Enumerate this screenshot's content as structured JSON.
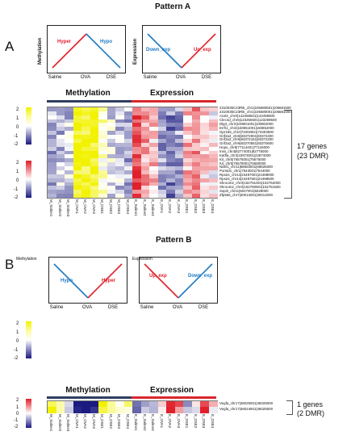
{
  "patternA": {
    "title": "Pattern A",
    "panel_label": "A",
    "meth_chart": {
      "ylabel": "Methylation",
      "left_label": "Hyper",
      "right_label": "Hypo"
    },
    "exp_chart": {
      "ylabel": "Expression",
      "left_label": "Down_exp",
      "right_label": "Up_exp"
    },
    "x_ticks": [
      "Saline",
      "OVA",
      "DSE"
    ],
    "colorbar_top": [
      "2",
      "1",
      "0",
      "-1",
      "-2"
    ],
    "colorbar_bottom": [
      "2",
      "1",
      "0",
      "-1",
      "-2"
    ],
    "methylation_header": "Methylation",
    "expression_header": "Expression",
    "gene_labels": [
      "2310035C23Rik_chr1|105680501|105681500",
      "2310035C23Rik_chr1|105680001|105681000",
      "Acsl4_chrX|142458501|142459500",
      "Clec4d_chr6|123256501|123259500",
      "Dlg3_chrX|100801001|100802000",
      "Errfi1_chr4|150851001|150852000",
      "Gpr155_chr2|73402501|73403500",
      "Grif2a2_chr6|83372001|83372200",
      "Grif2a2_chr6|83372151|83372200",
      "Grif2a2_chr6|83370551|83370600",
      "Hopx_chr5|77114401|77115000",
      "Inss_chr4|82774001|82775000",
      "Katfla_chr2|22873001|22874000",
      "Kit_chr5|75575001|75576000",
      "Kit_chr5|75579001|75580000",
      "Ndel1_chr11|68825001|68826000",
      "Pomtd1_chr1|7543001|7544000",
      "Rps24_chr14|24497001|24498000",
      "Rps24_chr14|24497501|24498500",
      "Shroom2_chrX|152751001|152752000",
      "Shroom2_chrX|152750501|152751500",
      "Sspi3_chr11|5027001|5028000",
      "Zfp566_chr7|30013001|30014000"
    ],
    "meth_columns": [
      "M_Saline1",
      "M_Saline2",
      "M_Saline3",
      "M_OVA1",
      "M_OVA2",
      "M_OVA3",
      "M_DSE1",
      "M_DSE2",
      "M_DSE3",
      "M_DSE4"
    ],
    "exp_columns": [
      "E_Saline1",
      "E_Saline2",
      "E_Saline3",
      "E_OVA1",
      "E_OVA2",
      "E_OVA3",
      "E_DSE1",
      "E_DSE2",
      "E_DSE3",
      "E_DSE4"
    ],
    "bracket_text_1": "17 genes",
    "bracket_text_2": "(23 DMR)"
  },
  "patternB": {
    "title": "Pattern B",
    "panel_label": "B",
    "meth_chart": {
      "ylabel": "Methylation",
      "left_label": "Hypo",
      "right_label": "Hyper"
    },
    "exp_chart": {
      "ylabel": "Expression",
      "left_label": "Up_exp",
      "right_label": "Down_exp"
    },
    "x_ticks": [
      "Saline",
      "OVA",
      "DSE"
    ],
    "colorbar_top": [
      "2",
      "1",
      "0",
      "-1",
      "-2"
    ],
    "colorbar_bottom": [
      "2",
      "1",
      "0",
      "-1",
      "-2"
    ],
    "methylation_header": "Methylation",
    "expression_header": "Expression",
    "gene_labels": [
      "Vegfa_chr17|46025001|46026000",
      "Vegfa_chr17|46024501|46025500"
    ],
    "meth_columns": [
      "M_Saline1",
      "M_Saline2",
      "M_Saline3",
      "M_OVA1",
      "M_OVA2",
      "M_OVA3",
      "M_DSE1",
      "M_DSE2",
      "M_DSE3",
      "M_DSE4"
    ],
    "exp_columns": [
      "E_Saline1",
      "E_Saline2",
      "E_Saline3",
      "E_OVA1",
      "E_OVA2",
      "E_OVA3",
      "E_DSE1",
      "E_DSE2",
      "E_DSE3",
      "E_DSE4"
    ],
    "bracket_text_1": "1 genes",
    "bracket_text_2": "(2 DMR)"
  },
  "colors": {
    "meth_high": "#f2f200",
    "meth_mid": "#ffffff",
    "meth_low": "#1a1a80",
    "exp_high": "#e0202a",
    "exp_mid": "#ffffff",
    "exp_low": "#1a1a80",
    "line_red": "#e0202a",
    "line_blue": "#1e7ac4",
    "meth_bar": "#2f3f5f",
    "exp_bar": "#d8282e"
  }
}
